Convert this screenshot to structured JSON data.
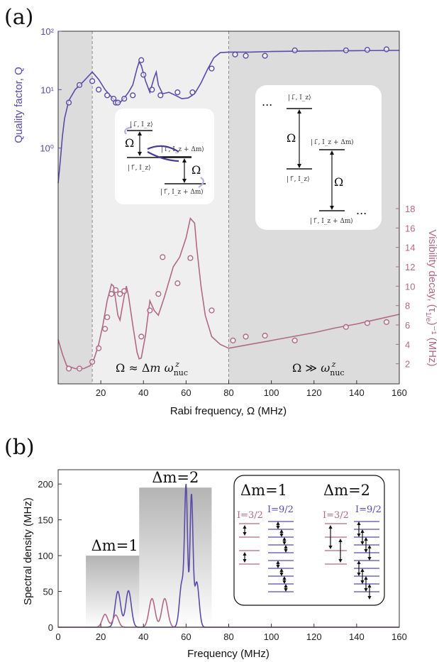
{
  "chart_data": [
    {
      "panel_label": "(a)",
      "type": "scatter",
      "xlabel": "Rabi frequency, Ω (MHz)",
      "ylabel_left": "Quality factor,  Q",
      "ylabel_right": "Visibility decay, (τ",
      "ylabel_right_sub": "1/e",
      "ylabel_right_tail": ")⁻¹ (MHz)",
      "xlim": [
        0,
        160
      ],
      "xticks": [
        20,
        40,
        60,
        80,
        100,
        120,
        140,
        160
      ],
      "left_axis": {
        "scale": "log",
        "ticks": [
          "10⁰",
          "10¹",
          "10²"
        ]
      },
      "right_axis": {
        "ylim": [
          0,
          18
        ],
        "ticks": [
          2,
          4,
          6,
          8,
          10,
          12,
          14,
          16,
          18
        ]
      },
      "regions": [
        {
          "from": 0,
          "to": 16,
          "shade": "dark"
        },
        {
          "from": 16,
          "to": 80,
          "shade": "light",
          "label": "Ω ≈ Δm ω_nuc^z"
        },
        {
          "from": 80,
          "to": 160,
          "shade": "dark",
          "label": "Ω ≫ ω_nuc^z"
        }
      ],
      "series": [
        {
          "axis": "left",
          "color": "#5b4aa8",
          "points": [
            [
              5,
              6
            ],
            [
              10,
              12
            ],
            [
              16,
              14
            ],
            [
              19,
              10
            ],
            [
              23,
              8
            ],
            [
              26,
              7
            ],
            [
              27,
              6
            ],
            [
              28,
              6
            ],
            [
              31,
              7
            ],
            [
              35,
              8
            ],
            [
              39,
              32
            ],
            [
              40,
              18
            ],
            [
              44,
              10
            ],
            [
              48,
              8
            ],
            [
              56,
              9
            ],
            [
              63,
              9
            ],
            [
              72,
              23
            ],
            [
              83,
              40
            ],
            [
              88,
              38
            ],
            [
              97,
              38
            ],
            [
              111,
              47
            ],
            [
              135,
              47
            ],
            [
              145,
              48
            ],
            [
              154,
              49
            ]
          ],
          "curve": [
            [
              0,
              0.25
            ],
            [
              1,
              0.6
            ],
            [
              2,
              1.6
            ],
            [
              3,
              3.2
            ],
            [
              5,
              6.5
            ],
            [
              8,
              10
            ],
            [
              12,
              14
            ],
            [
              16,
              20
            ],
            [
              19,
              15
            ],
            [
              22,
              10
            ],
            [
              25,
              7.5
            ],
            [
              27,
              6.2
            ],
            [
              29,
              6.0
            ],
            [
              31,
              7.2
            ],
            [
              33,
              9
            ],
            [
              35,
              12
            ],
            [
              37,
              23
            ],
            [
              38,
              30
            ],
            [
              39,
              26
            ],
            [
              41,
              14
            ],
            [
              43,
              9
            ],
            [
              45,
              16
            ],
            [
              46,
              20
            ],
            [
              47,
              12
            ],
            [
              49,
              8.5
            ],
            [
              52,
              9
            ],
            [
              55,
              8
            ],
            [
              58,
              7
            ],
            [
              61,
              7.2
            ],
            [
              64,
              8.5
            ],
            [
              67,
              13
            ],
            [
              70,
              22
            ],
            [
              73,
              35
            ],
            [
              76,
              43
            ],
            [
              80,
              44
            ],
            [
              90,
              44
            ],
            [
              100,
              45
            ],
            [
              120,
              46
            ],
            [
              140,
              46.5
            ],
            [
              160,
              47
            ]
          ]
        },
        {
          "axis": "right",
          "color": "#b06a86",
          "points": [
            [
              5,
              1.5
            ],
            [
              10,
              1.5
            ],
            [
              16,
              2.2
            ],
            [
              19,
              3.6
            ],
            [
              22,
              5.6
            ],
            [
              23,
              6.8
            ],
            [
              25,
              9.2
            ],
            [
              27,
              9.6
            ],
            [
              29,
              9.2
            ],
            [
              31,
              9.5
            ],
            [
              39,
              4.8
            ],
            [
              43,
              7.5
            ],
            [
              47,
              9.2
            ],
            [
              49,
              13.0
            ],
            [
              56,
              10.3
            ],
            [
              62,
              12.9
            ],
            [
              72,
              7.5
            ],
            [
              82,
              4.4
            ],
            [
              88,
              4.8
            ],
            [
              97,
              4.9
            ],
            [
              111,
              4.4
            ],
            [
              135,
              5.8
            ],
            [
              145,
              6.2
            ],
            [
              154,
              6.3
            ]
          ],
          "curve": [
            [
              0,
              4.5
            ],
            [
              2,
              3
            ],
            [
              4,
              1.8
            ],
            [
              8,
              1.5
            ],
            [
              12,
              1.5
            ],
            [
              15,
              1.8
            ],
            [
              17,
              2.6
            ],
            [
              19,
              4
            ],
            [
              21,
              6
            ],
            [
              23,
              8.5
            ],
            [
              25,
              10.2
            ],
            [
              26,
              10
            ],
            [
              28,
              7
            ],
            [
              29,
              6.5
            ],
            [
              31,
              9
            ],
            [
              32,
              10
            ],
            [
              33,
              9
            ],
            [
              35,
              6
            ],
            [
              37,
              3.2
            ],
            [
              38,
              2.5
            ],
            [
              39,
              2.6
            ],
            [
              41,
              5
            ],
            [
              43,
              8.5
            ],
            [
              45,
              7.5
            ],
            [
              47,
              7
            ],
            [
              50,
              9
            ],
            [
              54,
              12
            ],
            [
              57,
              13
            ],
            [
              60,
              15
            ],
            [
              62,
              17
            ],
            [
              64,
              16.5
            ],
            [
              65,
              14
            ],
            [
              67,
              10
            ],
            [
              69,
              7
            ],
            [
              72,
              4.8
            ],
            [
              76,
              4
            ],
            [
              80,
              3.6
            ],
            [
              90,
              4
            ],
            [
              100,
              4.4
            ],
            [
              110,
              4.8
            ],
            [
              120,
              5.2
            ],
            [
              130,
              5.7
            ],
            [
              140,
              6.1
            ],
            [
              150,
              6.6
            ],
            [
              160,
              7.1
            ]
          ]
        }
      ],
      "insets": {
        "left": {
          "levels": [
            "|↓̃, I_z⟩",
            "|↑̃, I_z⟩",
            "|↓̃, I_z + Δm⟩",
            "|↑̃, I_z + Δm⟩"
          ],
          "omega": "Ω"
        },
        "right": {
          "levels": [
            "|↓̃, I_z⟩",
            "|↑̃, I_z⟩",
            "|↓̃, I_z + Δm⟩",
            "|↑̃, I_z + Δm⟩"
          ],
          "omega": "Ω",
          "ellipsis": "..."
        }
      }
    },
    {
      "panel_label": "(b)",
      "type": "line",
      "xlabel": "Frequency (MHz)",
      "ylabel": "Spectral density (MHz)",
      "xlim": [
        0,
        160
      ],
      "ylim": [
        0,
        220
      ],
      "xticks": [
        0,
        20,
        40,
        60,
        80,
        100,
        120,
        140,
        160
      ],
      "yticks": [
        0,
        50,
        100,
        150,
        200
      ],
      "annotations": [
        {
          "text": "Δm=1",
          "x_from": 13,
          "x_to": 40,
          "top": 100
        },
        {
          "text": "Δm=2",
          "x_from": 38,
          "x_to": 72,
          "top": 195
        }
      ],
      "series": [
        {
          "color": "#5b4aa8",
          "peaks": [
            [
              28,
              50,
              1.3
            ],
            [
              33,
              51,
              1.3
            ],
            [
              58,
              62,
              1.1
            ],
            [
              60,
              188,
              0.7
            ],
            [
              62.5,
              182,
              0.7
            ],
            [
              65,
              63,
              1.1
            ]
          ]
        },
        {
          "color": "#b06a86",
          "peaks": [
            [
              22,
              18,
              1.3
            ],
            [
              27,
              17,
              1.3
            ],
            [
              44,
              40,
              1.4
            ],
            [
              50,
              40,
              1.4
            ]
          ]
        }
      ],
      "inset": {
        "title_1": "Δm=1",
        "title_2": "Δm=2",
        "label_small": "I=3/2",
        "label_large": "I=9/2"
      }
    }
  ]
}
